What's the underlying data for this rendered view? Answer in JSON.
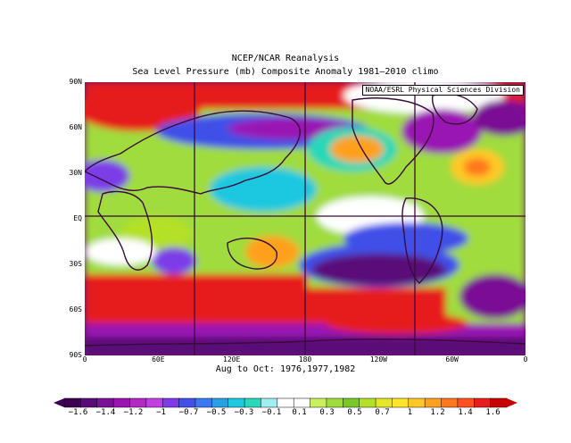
{
  "title": "NCEP/NCAR Reanalysis",
  "subtitle": "Sea Level Pressure (mb) Composite Anomaly 1981–2010 climo",
  "attribution": "NOAA/ESRL Physical Sciences Division",
  "period": "Aug to Oct: 1976,1977,1982",
  "y_axis_labels": [
    "90N",
    "60N",
    "30N",
    "EQ",
    "30S",
    "60S",
    "90S"
  ],
  "x_axis_labels": [
    "0",
    "60E",
    "120E",
    "180",
    "120W",
    "60W",
    "0"
  ],
  "colorbar": {
    "labels": [
      "−1.6",
      "−1.4",
      "−1.2",
      "−1",
      "−0.7",
      "−0.5",
      "−0.3",
      "−0.1",
      "0.1",
      "0.3",
      "0.5",
      "0.7",
      "1",
      "1.2",
      "1.4",
      "1.6"
    ],
    "colors": [
      "#3c0050",
      "#5a0a78",
      "#7a1094",
      "#9a14b4",
      "#b428c8",
      "#c040e0",
      "#7c3ce8",
      "#4050e8",
      "#3c78f0",
      "#28a0e8",
      "#1ec8e0",
      "#28d8b8",
      "#a0eef0",
      "#ffffff",
      "#ffffff",
      "#c8f060",
      "#a0dc3c",
      "#78c828",
      "#b4e028",
      "#e6e628",
      "#ffe628",
      "#ffc828",
      "#ffa01e",
      "#ff781e",
      "#ff501e",
      "#e61e1e",
      "#c80000"
    ]
  }
}
